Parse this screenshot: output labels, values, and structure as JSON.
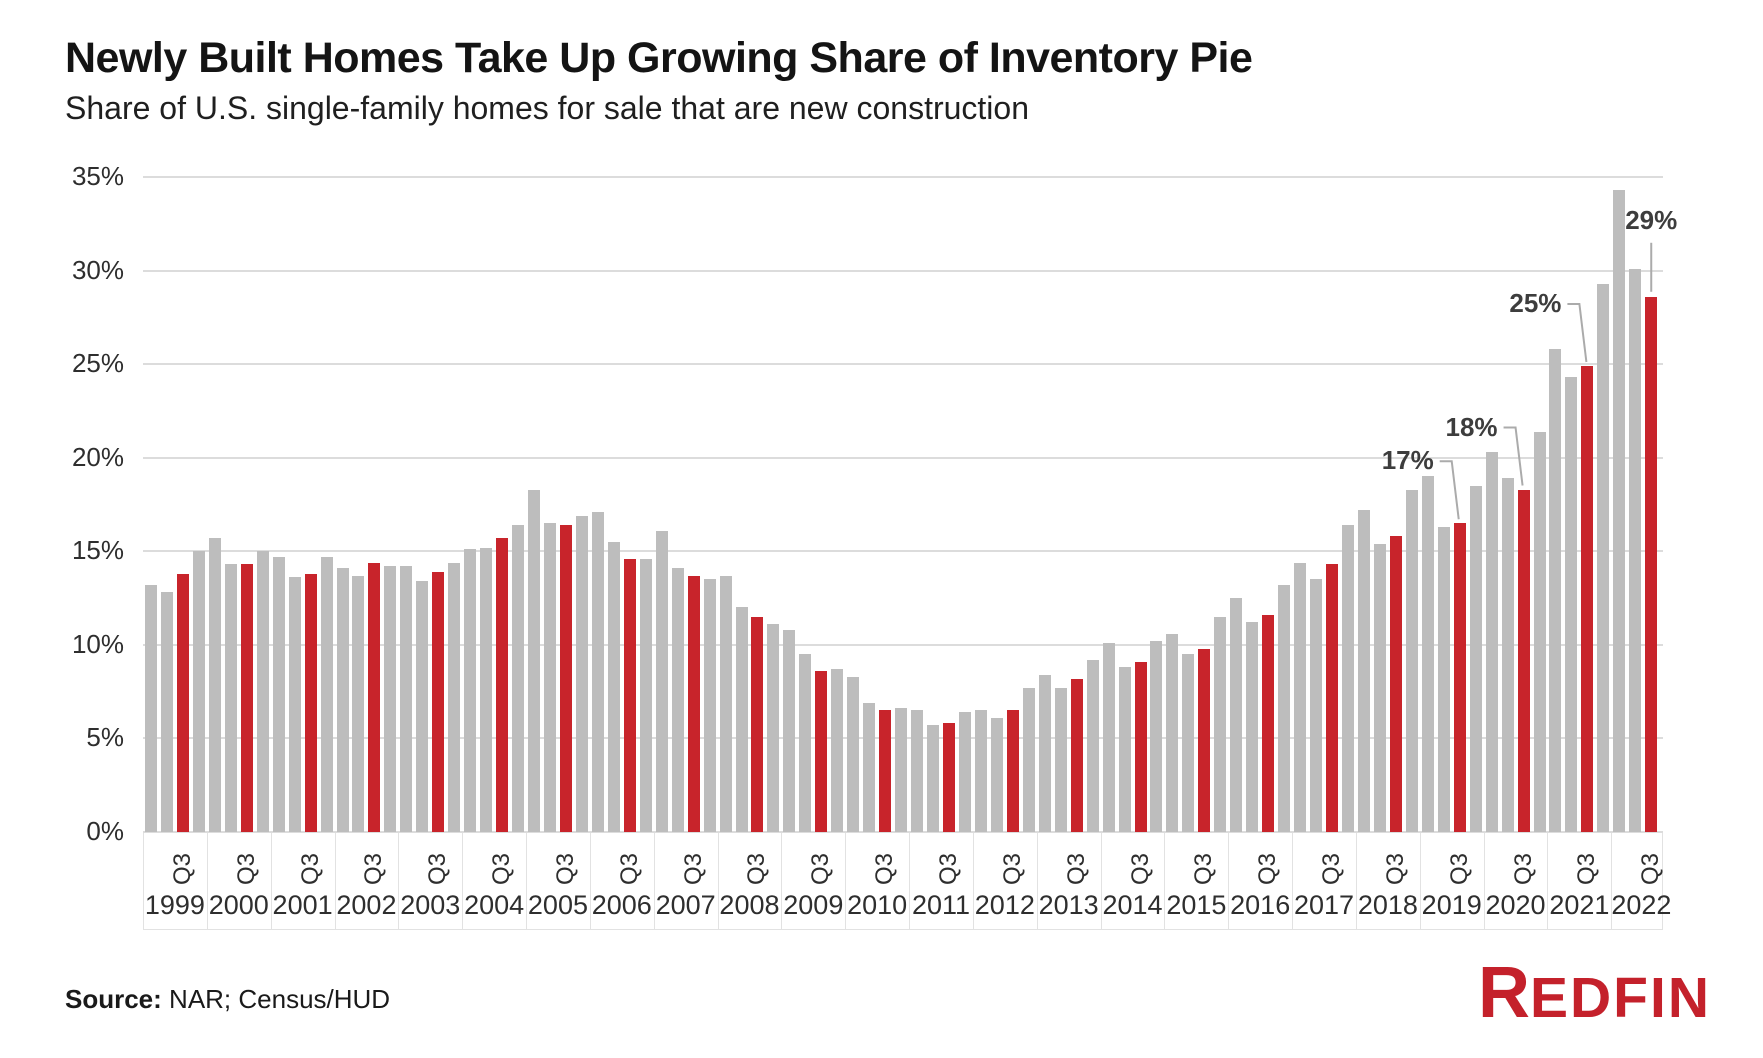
{
  "page": {
    "title": "Newly Built Homes Take Up Growing Share of Inventory Pie",
    "subtitle": "Share of U.S. single-family homes for sale that are new construction",
    "source_label": "Source:",
    "source_text": " NAR; Census/HUD",
    "logo_first_letter": "R",
    "logo_rest": "EDFIN"
  },
  "chart_data": {
    "type": "bar",
    "title": "Newly Built Homes Take Up Growing Share of Inventory Pie",
    "subtitle": "Share of U.S. single-family homes for sale that are new construction",
    "unit": "%",
    "ylim": [
      0,
      35
    ],
    "grid": true,
    "yticks": [
      {
        "value": 0,
        "label": "0%"
      },
      {
        "value": 5,
        "label": "5%"
      },
      {
        "value": 10,
        "label": "10%"
      },
      {
        "value": 15,
        "label": "15%"
      },
      {
        "value": 20,
        "label": "20%"
      },
      {
        "value": 25,
        "label": "25%"
      },
      {
        "value": 30,
        "label": "30%"
      },
      {
        "value": 35,
        "label": "35%"
      }
    ],
    "quarter_axis_label": "Q3",
    "highlight_quarter_index": 2,
    "series_by_year": [
      {
        "year": "1999",
        "quarters": [
          13.2,
          12.8,
          13.8,
          15.0
        ]
      },
      {
        "year": "2000",
        "quarters": [
          15.7,
          14.3,
          14.3,
          15.0
        ]
      },
      {
        "year": "2001",
        "quarters": [
          14.7,
          13.6,
          13.8,
          14.7
        ]
      },
      {
        "year": "2002",
        "quarters": [
          14.1,
          13.7,
          14.4,
          14.2
        ]
      },
      {
        "year": "2003",
        "quarters": [
          14.2,
          13.4,
          13.9,
          14.4
        ]
      },
      {
        "year": "2004",
        "quarters": [
          15.1,
          15.2,
          15.7,
          16.4
        ]
      },
      {
        "year": "2005",
        "quarters": [
          18.3,
          16.5,
          16.4,
          16.9
        ]
      },
      {
        "year": "2006",
        "quarters": [
          17.1,
          15.5,
          14.6,
          14.6
        ]
      },
      {
        "year": "2007",
        "quarters": [
          16.1,
          14.1,
          13.7,
          13.5
        ]
      },
      {
        "year": "2008",
        "quarters": [
          13.7,
          12.0,
          11.5,
          11.1
        ]
      },
      {
        "year": "2009",
        "quarters": [
          10.8,
          9.5,
          8.6,
          8.7
        ]
      },
      {
        "year": "2010",
        "quarters": [
          8.3,
          6.9,
          6.5,
          6.6
        ]
      },
      {
        "year": "2011",
        "quarters": [
          6.5,
          5.7,
          5.8,
          6.4
        ]
      },
      {
        "year": "2012",
        "quarters": [
          6.5,
          6.1,
          6.5,
          7.7
        ]
      },
      {
        "year": "2013",
        "quarters": [
          8.4,
          7.7,
          8.2,
          9.2
        ]
      },
      {
        "year": "2014",
        "quarters": [
          10.1,
          8.8,
          9.1,
          10.2
        ]
      },
      {
        "year": "2015",
        "quarters": [
          10.6,
          9.5,
          9.8,
          11.5
        ]
      },
      {
        "year": "2016",
        "quarters": [
          12.5,
          11.2,
          11.6,
          13.2
        ]
      },
      {
        "year": "2017",
        "quarters": [
          14.4,
          13.5,
          14.3,
          16.4
        ]
      },
      {
        "year": "2018",
        "quarters": [
          17.2,
          15.4,
          15.8,
          18.3
        ]
      },
      {
        "year": "2019",
        "quarters": [
          19.0,
          16.3,
          16.5,
          18.5
        ]
      },
      {
        "year": "2020",
        "quarters": [
          20.3,
          18.9,
          18.3,
          21.4
        ]
      },
      {
        "year": "2021",
        "quarters": [
          25.8,
          24.3,
          24.9,
          29.3
        ]
      },
      {
        "year": "2022",
        "quarters": [
          34.3,
          30.1,
          28.6
        ]
      }
    ],
    "annotations": [
      {
        "label": "17%",
        "year": "2019",
        "placement": "diagonal"
      },
      {
        "label": "18%",
        "year": "2020",
        "placement": "diagonal"
      },
      {
        "label": "25%",
        "year": "2021",
        "placement": "diagonal"
      },
      {
        "label": "29%",
        "year": "2022",
        "placement": "above"
      }
    ],
    "colors": {
      "bar": "#bdbdbd",
      "highlight": "#c8242b",
      "gridline": "#dcdcdc",
      "axis_text": "#2e2e2e",
      "annotation_text": "#3d3d3d",
      "leader_line": "#ababab",
      "cell_border": "#e2e2e2",
      "logo_red": "#c4212b"
    },
    "legend": null
  }
}
